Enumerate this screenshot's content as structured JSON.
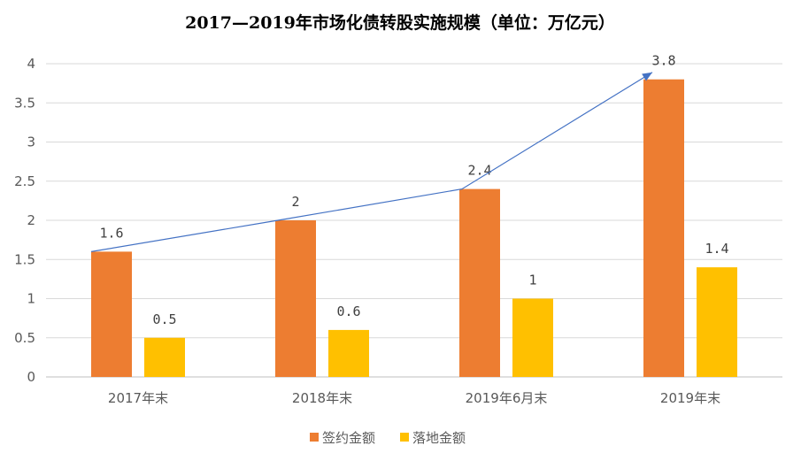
{
  "chart_data": {
    "type": "bar",
    "title": "2017—2019年市场化债转股实施规模（单位：万亿元）",
    "categories": [
      "2017年末",
      "2018年末",
      "2019年6月末",
      "2019年末"
    ],
    "series": [
      {
        "name": "签约金额",
        "values": [
          1.6,
          2,
          2.4,
          3.8
        ],
        "color": "#ED7D31"
      },
      {
        "name": "落地金额",
        "values": [
          0.5,
          0.6,
          1,
          1.4
        ],
        "color": "#FFC000"
      }
    ],
    "data_labels": [
      [
        "1.6",
        "2",
        "2.4",
        "3.8"
      ],
      [
        "0.5",
        "0.6",
        "1",
        "1.4"
      ]
    ],
    "ylim": [
      0,
      4
    ],
    "yticks": [
      "0",
      "0.5",
      "1",
      "1.5",
      "2",
      "2.5",
      "3",
      "3.5",
      "4"
    ],
    "grid": true,
    "legend": "bottom",
    "trend_arrow": {
      "color": "#4472C4",
      "follows_series": "签约金额"
    }
  }
}
